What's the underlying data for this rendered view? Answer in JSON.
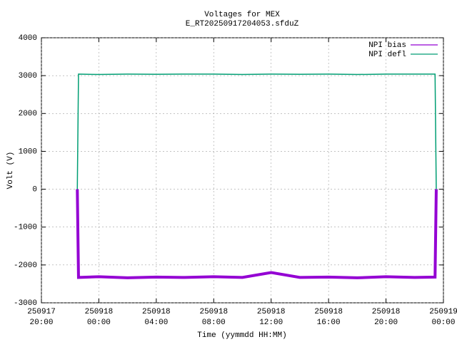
{
  "chart_data": {
    "type": "line",
    "title": "Voltages for MEX",
    "subtitle": "E_RT20250917204053.sfduZ",
    "x_label": "Time (yymmdd HH:MM)",
    "y_label": "Volt (V)",
    "x": [
      "250917 22:30",
      "250917 22:35",
      "250918 00:00",
      "250918 02:00",
      "250918 04:00",
      "250918 06:00",
      "250918 08:00",
      "250918 10:00",
      "250918 12:00",
      "250918 14:00",
      "250918 16:00",
      "250918 18:00",
      "250918 20:00",
      "250918 22:00",
      "250918 23:25",
      "250918 23:30"
    ],
    "series": [
      {
        "name": "NPI bias",
        "color": "#9400d3",
        "values": [
          0,
          -2330,
          -2310,
          -2340,
          -2320,
          -2330,
          -2310,
          -2330,
          -2200,
          -2330,
          -2320,
          -2340,
          -2310,
          -2330,
          -2320,
          0
        ]
      },
      {
        "name": "NPI defl",
        "color": "#009e73",
        "values": [
          0,
          3040,
          3030,
          3040,
          3035,
          3040,
          3040,
          3030,
          3040,
          3035,
          3040,
          3030,
          3040,
          3040,
          3040,
          0
        ]
      }
    ],
    "xlim": [
      "250917 20:00",
      "250919 00:00"
    ],
    "xticks": [
      {
        "value": "250917 20:00",
        "label": [
          "250917",
          "20:00"
        ]
      },
      {
        "value": "250918 00:00",
        "label": [
          "250918",
          "00:00"
        ]
      },
      {
        "value": "250918 04:00",
        "label": [
          "250918",
          "04:00"
        ]
      },
      {
        "value": "250918 08:00",
        "label": [
          "250918",
          "08:00"
        ]
      },
      {
        "value": "250918 12:00",
        "label": [
          "250918",
          "12:00"
        ]
      },
      {
        "value": "250918 16:00",
        "label": [
          "250918",
          "16:00"
        ]
      },
      {
        "value": "250918 20:00",
        "label": [
          "250918",
          "20:00"
        ]
      },
      {
        "value": "250919 00:00",
        "label": [
          "250919",
          "00:00"
        ]
      }
    ],
    "ylim": [
      -3000,
      4000
    ],
    "yticks": [
      -3000,
      -2000,
      -1000,
      0,
      1000,
      2000,
      3000,
      4000
    ],
    "grid": true,
    "legend": "top-right"
  }
}
